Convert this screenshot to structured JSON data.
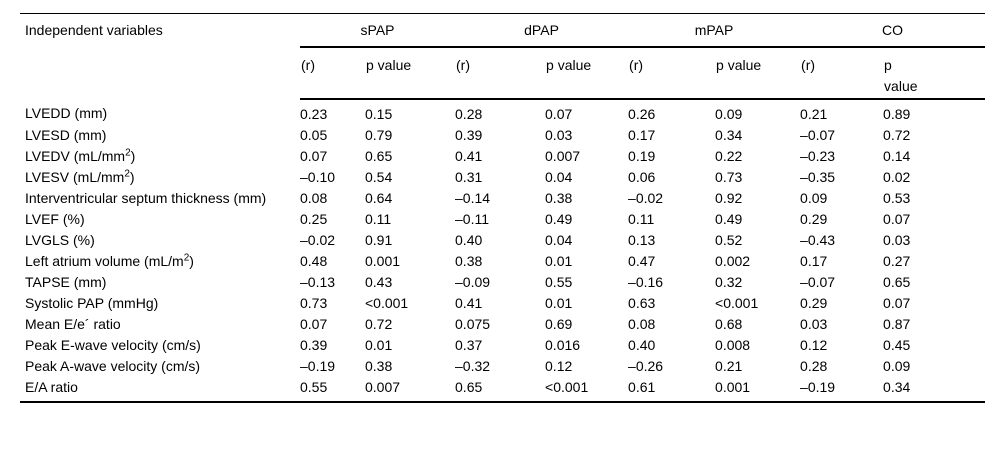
{
  "page": {
    "background": "#ffffff",
    "text_color": "#000000"
  },
  "table": {
    "type": "table",
    "title_column_header": "Independent variables",
    "groups": [
      "sPAP",
      "dPAP",
      "mPAP",
      "CO"
    ],
    "sub_headers": {
      "r": "(r)",
      "p": "p value"
    },
    "rows": [
      {
        "label_parts": [
          {
            "t": "LVEDD (mm)"
          }
        ],
        "values": [
          "0.23",
          "0.15",
          "0.28",
          "0.07",
          "0.26",
          "0.09",
          "0.21",
          "0.89"
        ],
        "bold": []
      },
      {
        "label_parts": [
          {
            "t": "LVESD (mm)"
          }
        ],
        "values": [
          "0.05",
          "0.79",
          "0.39",
          "0.03",
          "0.17",
          "0.34",
          "–0.07",
          "0.72"
        ],
        "bold": [
          2,
          3
        ]
      },
      {
        "label_parts": [
          {
            "t": "LVEDV (mL/mm"
          },
          {
            "t": "2",
            "sup": true
          },
          {
            "t": ")"
          }
        ],
        "values": [
          "0.07",
          "0.65",
          "0.41",
          "0.007",
          "0.19",
          "0.22",
          "–0.23",
          "0.14"
        ],
        "bold": [
          2,
          3
        ]
      },
      {
        "label_parts": [
          {
            "t": "LVESV (mL/mm"
          },
          {
            "t": "2",
            "sup": true
          },
          {
            "t": ")"
          }
        ],
        "values": [
          "–0.10",
          "0.54",
          "0.31",
          "0.04",
          "0.06",
          "0.73",
          "–0.35",
          "0.02"
        ],
        "bold": [
          2,
          3,
          6,
          7
        ]
      },
      {
        "label_parts": [
          {
            "t": "Interventricular septum thickness (mm)"
          }
        ],
        "values": [
          "0.08",
          "0.64",
          "–0.14",
          "0.38",
          "–0.02",
          "0.92",
          "0.09",
          "0.53"
        ],
        "bold": []
      },
      {
        "label_parts": [
          {
            "t": "LVEF (%)"
          }
        ],
        "values": [
          "0.25",
          "0.11",
          "–0.11",
          "0.49",
          "0.11",
          "0.49",
          "0.29",
          "0.07"
        ],
        "bold": []
      },
      {
        "label_parts": [
          {
            "t": "LVGLS (%)"
          }
        ],
        "values": [
          "–0.02",
          "0.91",
          "0.40",
          "0.04",
          "0.13",
          "0.52",
          "–0.43",
          "0.03"
        ],
        "bold": [
          2,
          3,
          6,
          7
        ]
      },
      {
        "label_parts": [
          {
            "t": "Left atrium volume (mL/m"
          },
          {
            "t": "2",
            "sup": true
          },
          {
            "t": ")"
          }
        ],
        "values": [
          "0.48",
          "0.001",
          "0.38",
          "0.01",
          "0.47",
          "0.002",
          "0.17",
          "0.27"
        ],
        "bold": [
          0,
          1,
          2,
          3,
          4,
          5
        ]
      },
      {
        "label_parts": [
          {
            "t": "TAPSE (mm)"
          }
        ],
        "values": [
          "–0.13",
          "0.43",
          "–0.09",
          "0.55",
          "–0.16",
          "0.32",
          "–0.07",
          "0.65"
        ],
        "bold": []
      },
      {
        "label_parts": [
          {
            "t": "Systolic PAP (mmHg)"
          }
        ],
        "values": [
          "0.73",
          "<0.001",
          "0.41",
          "0.01",
          "0.63",
          "<0.001",
          "0.29",
          "0.07"
        ],
        "bold": [
          0,
          1,
          2,
          3,
          4,
          5
        ]
      },
      {
        "label_parts": [
          {
            "t": "Mean E/e´ ratio"
          }
        ],
        "values": [
          "0.07",
          "0.72",
          "0.075",
          "0.69",
          "0.08",
          "0.68",
          "0.03",
          "0.87"
        ],
        "bold": []
      },
      {
        "label_parts": [
          {
            "t": "Peak E-wave velocity (cm/s)"
          }
        ],
        "values": [
          "0.39",
          "0.01",
          "0.37",
          "0.016",
          "0.40",
          "0.008",
          "0.12",
          "0.45"
        ],
        "bold": [
          0,
          1,
          2,
          3,
          4,
          5
        ]
      },
      {
        "label_parts": [
          {
            "t": "Peak A-wave velocity (cm/s)"
          }
        ],
        "values": [
          "–0.19",
          "0.38",
          "–0.32",
          "0.12",
          "–0.26",
          "0.21",
          "0.28",
          "0.09"
        ],
        "bold": []
      },
      {
        "label_parts": [
          {
            "t": "E/A ratio"
          }
        ],
        "values": [
          "0.55",
          "0.007",
          "0.65",
          "<0.001",
          "0.61",
          "0.001",
          "–0.19",
          "0.34"
        ],
        "bold": [
          0,
          1,
          2,
          3,
          4,
          5
        ]
      }
    ]
  }
}
